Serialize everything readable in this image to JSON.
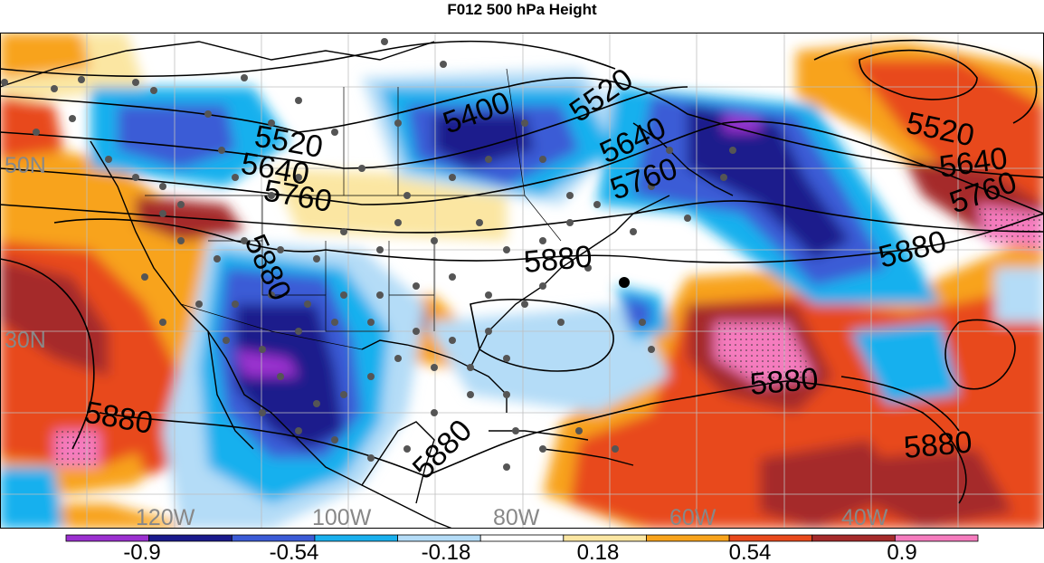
{
  "title": "F012 500 hPa Height",
  "map": {
    "longitude_labels": [
      "120W",
      "100W",
      "80W",
      "60W",
      "40W"
    ],
    "latitude_labels": [
      "50N",
      "30N"
    ],
    "contour_labels": [
      "5400",
      "5520",
      "5520",
      "5520",
      "5640",
      "5640",
      "5640",
      "5760",
      "5760",
      "5760",
      "5880",
      "5880",
      "5880",
      "5880",
      "5880",
      "5880",
      "5880"
    ],
    "colors": {
      "land_outline": "#000000",
      "contour_line": "#000000",
      "grid": "#bfbfbf",
      "station_dot": "#555555"
    }
  },
  "colorbar": {
    "colors": [
      "#9b30d0",
      "#1a1a8c",
      "#3b5bd6",
      "#19b0ee",
      "#b4dcf7",
      "#ffffff",
      "#fbe6a2",
      "#f8a31b",
      "#e8491c",
      "#a52a2a",
      "#f57cbe"
    ],
    "tick_labels": [
      "-0.9",
      "-0.54",
      "-0.18",
      "0.18",
      "0.54",
      "0.9"
    ]
  }
}
